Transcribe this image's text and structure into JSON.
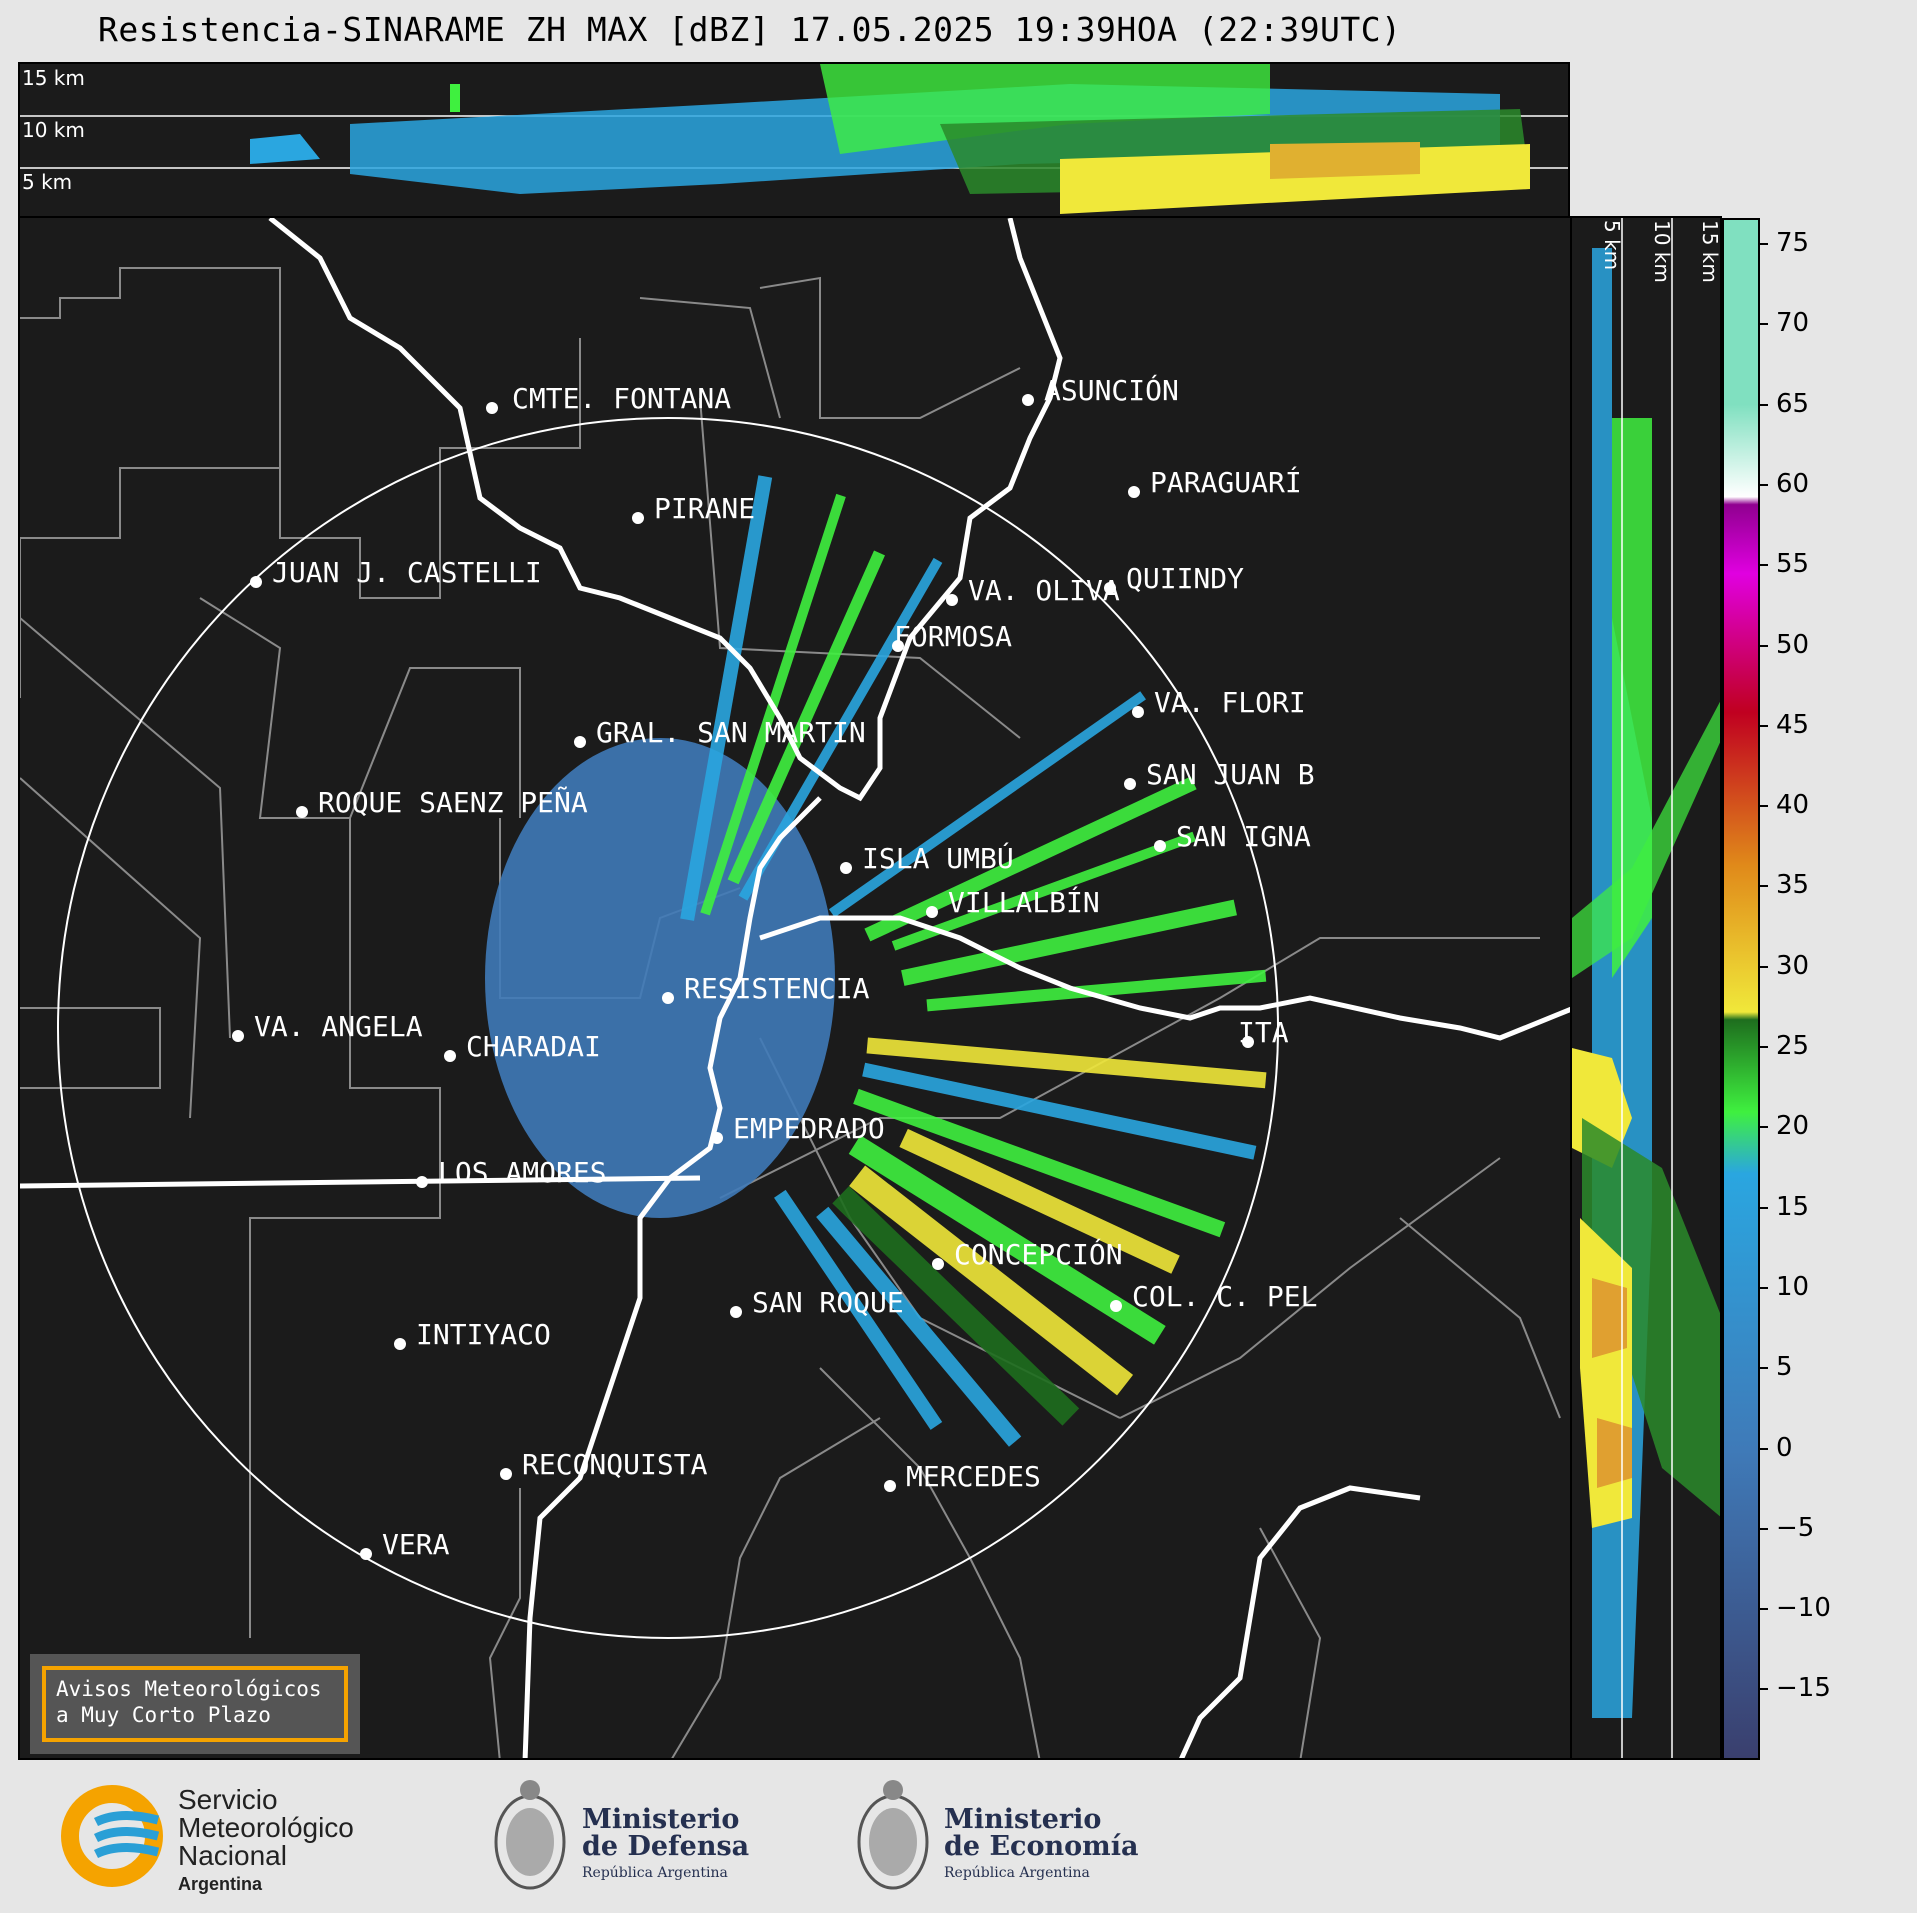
{
  "title": "Resistencia-SINARAME ZH MAX [dBZ] 17.05.2025 19:39HOA (22:39UTC)",
  "top_panel": {
    "height_labels": [
      "15 km",
      "10 km",
      "5 km"
    ]
  },
  "right_panel": {
    "height_labels": [
      "5 km",
      "10 km",
      "15 km"
    ]
  },
  "cities": [
    {
      "name": "CMTE. FONTANA"
    },
    {
      "name": "ASUNCIÓN"
    },
    {
      "name": "PARAGUARÍ"
    },
    {
      "name": "PIRANE"
    },
    {
      "name": "JUAN J. CASTELLI"
    },
    {
      "name": "VA. OLIVA"
    },
    {
      "name": "QUIINDY"
    },
    {
      "name": "FORMOSA"
    },
    {
      "name": "VA. FLORI"
    },
    {
      "name": "GRAL. SAN MARTIN"
    },
    {
      "name": "SAN JUAN B"
    },
    {
      "name": "ROQUE SAENZ PEÑA"
    },
    {
      "name": "SAN IGNA"
    },
    {
      "name": "ISLA UMBÚ"
    },
    {
      "name": "VILLALBÍN"
    },
    {
      "name": "RESISTENCIA"
    },
    {
      "name": "ITA"
    },
    {
      "name": "VA. ANGELA"
    },
    {
      "name": "CHARADAI"
    },
    {
      "name": "EMPEDRADO"
    },
    {
      "name": "LOS AMORES"
    },
    {
      "name": "CONCEPCIÓN"
    },
    {
      "name": "SAN ROQUE"
    },
    {
      "name": "COL. C. PEL"
    },
    {
      "name": "INTIYACO"
    },
    {
      "name": "RECONQUISTA"
    },
    {
      "name": "MERCEDES"
    },
    {
      "name": "VERA"
    }
  ],
  "colorbar": {
    "ticks": [
      "75",
      "70",
      "65",
      "60",
      "55",
      "50",
      "45",
      "40",
      "35",
      "30",
      "25",
      "20",
      "15",
      "10",
      "5",
      "0",
      "−5",
      "−10",
      "−15"
    ],
    "colors": {
      "low": "#3a3f6e",
      "mid_low": "#3f7ab8",
      "blue": "#2aa6e0",
      "green_light": "#3ff03f",
      "green_dark": "#1e6e1e",
      "yellow": "#f0e83a",
      "orange": "#e08a1a",
      "red": "#c00020",
      "magenta": "#e000e0",
      "purple": "#900090",
      "white": "#ffffff",
      "teal": "#80e0c0"
    }
  },
  "legend_box": {
    "line1": "Avisos Meteorológicos",
    "line2": "a Muy Corto Plazo"
  },
  "logos": {
    "smn": {
      "line1": "Servicio",
      "line2": "Meteorológico",
      "line3": "Nacional",
      "line4": "Argentina"
    },
    "defensa": {
      "line1": "Ministerio",
      "line2": "de Defensa",
      "line3": "República Argentina"
    },
    "economia": {
      "line1": "Ministerio",
      "line2": "de Economía",
      "line3": "República Argentina"
    }
  }
}
